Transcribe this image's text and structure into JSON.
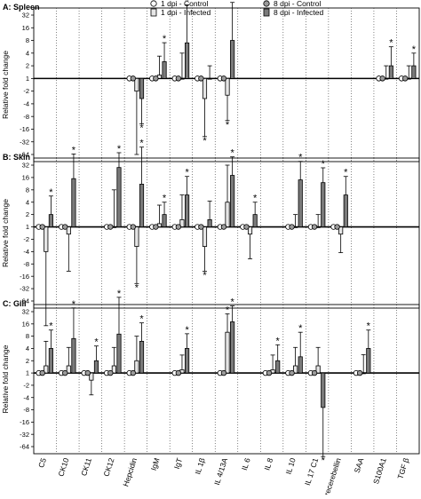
{
  "legend": [
    {
      "label": "1 dpi - Control",
      "shape": "circle",
      "fill": "#ffffff"
    },
    {
      "label": "8 dpi - Control",
      "shape": "circle",
      "fill": "#9a9a9a"
    },
    {
      "label": "1 dpi - Infected",
      "shape": "bar",
      "fill": "#e6e6e6"
    },
    {
      "label": "8 dpi - Infected",
      "shape": "bar",
      "fill": "#7a7a7a"
    }
  ],
  "colors": {
    "c1": "#ffffff",
    "c8": "#9a9a9a",
    "i1": "#e6e6e6",
    "i8": "#7a7a7a",
    "grid": "#333333",
    "axis": "#000000"
  },
  "chart_data": {
    "type": "bar",
    "scale": "log2",
    "ylabel": "Relative fold change",
    "yticks": [
      "32",
      "16",
      "8",
      "4",
      "2",
      "1",
      "-2",
      "-4",
      "-8",
      "-16",
      "-32",
      "-64"
    ],
    "yexp": [
      5,
      4,
      3,
      2,
      1,
      0,
      -1,
      -2,
      -3,
      -4,
      -5,
      -6
    ],
    "ylim": [
      "-64",
      "32"
    ],
    "categories": [
      "C5",
      "CK10",
      "CK11",
      "CK12",
      "Hepcidin",
      "IgM",
      "IgT",
      "IL 1β",
      "IL 4/13A",
      "IL 6",
      "IL 8",
      "IL 10",
      "IL 17 C1",
      "Precerebellin",
      "SAA",
      "S100A1",
      "TGF β"
    ],
    "grid": "vertical dotted between genes",
    "panels": [
      {
        "title": "A: Spleen",
        "series": [
          {
            "name": "1 dpi - Infected",
            "values": [
              null,
              null,
              null,
              null,
              -2,
              1.2,
              1,
              -3,
              -2.5,
              null,
              null,
              null,
              null,
              null,
              null,
              1,
              1
            ]
          },
          {
            "name": "8 dpi - Infected",
            "values": [
              null,
              null,
              null,
              null,
              -3,
              2.5,
              7,
              1,
              8,
              null,
              null,
              null,
              null,
              null,
              null,
              2,
              2
            ]
          }
        ],
        "errors": {
          "1 dpi - Infected": [
            null,
            null,
            null,
            null,
            5,
            1.5,
            2,
            3,
            2,
            null,
            null,
            null,
            null,
            null,
            null,
            1,
            1
          ],
          "8 dpi - Infected": [
            null,
            null,
            null,
            null,
            2,
            1.5,
            3,
            1,
            3,
            null,
            null,
            null,
            null,
            null,
            null,
            1.5,
            1
          ]
        },
        "significant": {
          "1 dpi - Infected": [
            false,
            false,
            false,
            false,
            false,
            false,
            false,
            true,
            true,
            false,
            false,
            false,
            false,
            false,
            false,
            false,
            false
          ],
          "8 dpi - Infected": [
            false,
            false,
            false,
            false,
            true,
            true,
            true,
            false,
            true,
            false,
            false,
            false,
            false,
            false,
            false,
            true,
            true
          ]
        }
      },
      {
        "title": "B: Skin",
        "series": [
          {
            "name": "1 dpi - Infected",
            "values": [
              -4,
              -1.5,
              null,
              1,
              -3,
              1.2,
              1.5,
              -3,
              4,
              -1.5,
              null,
              1,
              1,
              -1.5,
              null,
              null,
              null
            ]
          },
          {
            "name": "8 dpi - Infected",
            "values": [
              2,
              15,
              null,
              28,
              11,
              2,
              6,
              1.5,
              18,
              2,
              null,
              14,
              12,
              6,
              null,
              null,
              null
            ]
          }
        ],
        "errors": {
          "1 dpi - Infected": [
            6,
            3,
            null,
            3,
            3,
            1.5,
            2,
            2,
            3,
            2,
            null,
            1,
            1,
            1.5,
            null,
            null,
            null
          ],
          "8 dpi - Infected": [
            1.5,
            2,
            null,
            1.2,
            3,
            1,
            1.5,
            1.5,
            1.5,
            1,
            null,
            1.5,
            1.2,
            1.5,
            null,
            null,
            null
          ]
        },
        "significant": {
          "1 dpi - Infected": [
            false,
            false,
            false,
            false,
            true,
            false,
            false,
            true,
            false,
            false,
            false,
            false,
            false,
            false,
            false,
            false,
            false
          ],
          "8 dpi - Infected": [
            true,
            true,
            false,
            true,
            true,
            true,
            true,
            false,
            true,
            true,
            false,
            true,
            true,
            true,
            false,
            false,
            false
          ]
        }
      },
      {
        "title": "C: Gill",
        "series": [
          {
            "name": "1 dpi - Infected",
            "values": [
              1.5,
              1.5,
              -1.5,
              1.5,
              2,
              null,
              1.2,
              null,
              10,
              null,
              1.2,
              1.5,
              1.5,
              null,
              1,
              null,
              null
            ]
          },
          {
            "name": "8 dpi - Infected",
            "values": [
              4,
              7,
              2,
              9,
              6,
              null,
              4,
              null,
              18,
              null,
              2,
              2.5,
              -7,
              null,
              4,
              null,
              null
            ]
          }
        ],
        "errors": {
          "1 dpi - Infected": [
            2,
            1.5,
            1.2,
            1.5,
            2,
            null,
            1.2,
            null,
            1.5,
            null,
            1.2,
            1.5,
            1.5,
            null,
            1.5,
            null,
            null
          ],
          "8 dpi - Infected": [
            1.5,
            2.5,
            1.2,
            3,
            1.5,
            null,
            1.2,
            null,
            1.3,
            null,
            1.3,
            2,
            4,
            null,
            1.5,
            null,
            null
          ]
        },
        "significant": {
          "1 dpi - Infected": [
            false,
            false,
            false,
            false,
            false,
            false,
            false,
            false,
            true,
            false,
            false,
            false,
            false,
            false,
            false,
            false,
            false
          ],
          "8 dpi - Infected": [
            true,
            true,
            true,
            true,
            true,
            false,
            true,
            false,
            true,
            false,
            true,
            true,
            true,
            false,
            true,
            false,
            false
          ]
        }
      }
    ]
  }
}
